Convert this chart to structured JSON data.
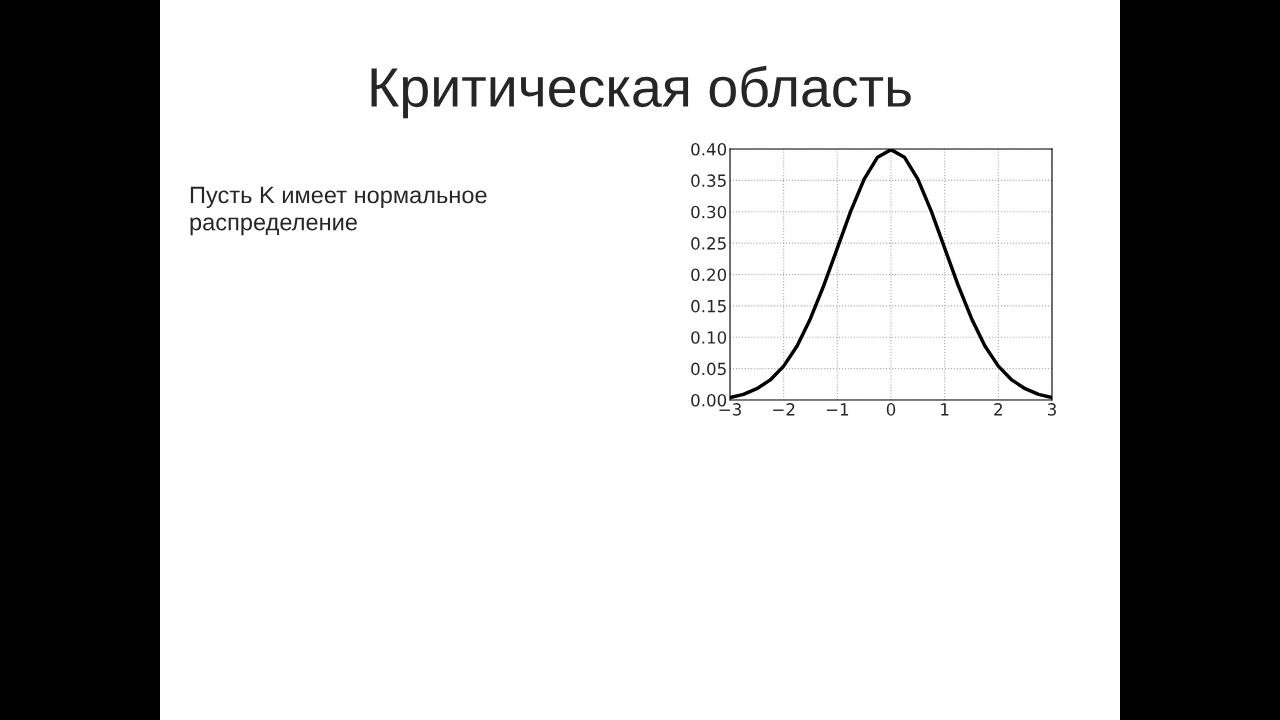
{
  "chart_data": {
    "type": "line",
    "title": "Критическая область",
    "annotations": [
      "Пусть K имеет нормальное\nраспределение"
    ],
    "x": [
      -3,
      -2.75,
      -2.5,
      -2.25,
      -2,
      -1.75,
      -1.5,
      -1.25,
      -1,
      -0.75,
      -0.5,
      -0.25,
      0,
      0.25,
      0.5,
      0.75,
      1,
      1.25,
      1.5,
      1.75,
      2,
      2.25,
      2.5,
      2.75,
      3
    ],
    "series": [
      {
        "color": "#000000",
        "values": [
          0.004,
          0.009,
          0.018,
          0.032,
          0.054,
          0.086,
          0.13,
          0.183,
          0.242,
          0.301,
          0.352,
          0.387,
          0.399,
          0.387,
          0.352,
          0.301,
          0.242,
          0.183,
          0.13,
          0.086,
          0.054,
          0.032,
          0.018,
          0.009,
          0.004
        ]
      }
    ],
    "xlim": [
      -3,
      3
    ],
    "ylim": [
      0,
      0.4
    ],
    "xticks": [
      {
        "value": -3,
        "label": "−3"
      },
      {
        "value": -2,
        "label": "−2"
      },
      {
        "value": -1,
        "label": "−1"
      },
      0,
      1,
      2,
      3
    ],
    "yticks": [
      {
        "value": 0,
        "label": "0.00"
      },
      {
        "value": 0.05,
        "label": "0.05"
      },
      {
        "value": 0.1,
        "label": "0.10"
      },
      {
        "value": 0.15,
        "label": "0.15"
      },
      {
        "value": 0.2,
        "label": "0.20"
      },
      {
        "value": 0.25,
        "label": "0.25"
      },
      {
        "value": 0.3,
        "label": "0.30"
      },
      {
        "value": 0.35,
        "label": "0.35"
      },
      {
        "value": 0.4,
        "label": "0.40"
      }
    ],
    "grid": true,
    "line_style": "solid",
    "legend": false
  }
}
